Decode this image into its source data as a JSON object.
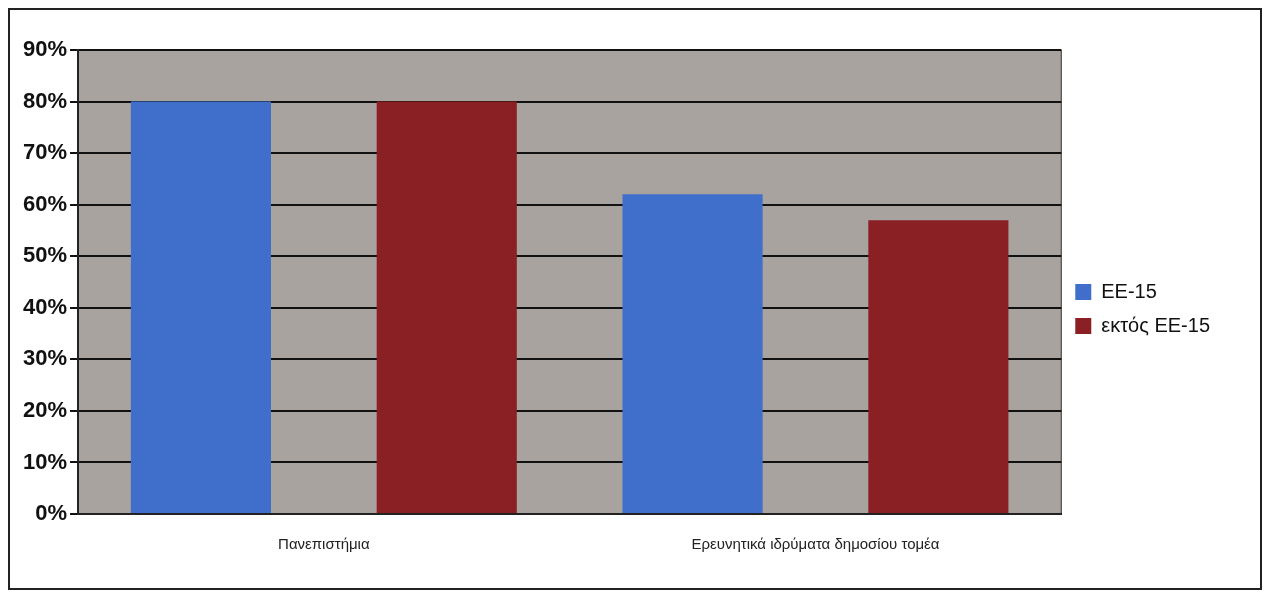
{
  "chart_data": {
    "type": "bar",
    "categories": [
      "Πανεπιστήμια",
      "Ερευνητικά ιδρύματα δημοσίου τομέα"
    ],
    "series": [
      {
        "name": "EE-15",
        "color": "#3f6fca",
        "values": [
          80,
          62
        ]
      },
      {
        "name": "εκτός EE-15",
        "color": "#8a1f24",
        "values": [
          80,
          57
        ]
      }
    ],
    "ylim": [
      0,
      90
    ],
    "yticks": [
      {
        "value": 0,
        "label": "0%"
      },
      {
        "value": 10,
        "label": "10%"
      },
      {
        "value": 20,
        "label": "20%"
      },
      {
        "value": 30,
        "label": "30%"
      },
      {
        "value": 40,
        "label": "40%"
      },
      {
        "value": 50,
        "label": "50%"
      },
      {
        "value": 60,
        "label": "60%"
      },
      {
        "value": 70,
        "label": "70%"
      },
      {
        "value": 80,
        "label": "80%"
      },
      {
        "value": 90,
        "label": "90%"
      }
    ],
    "grid": "y",
    "legend": "right"
  }
}
